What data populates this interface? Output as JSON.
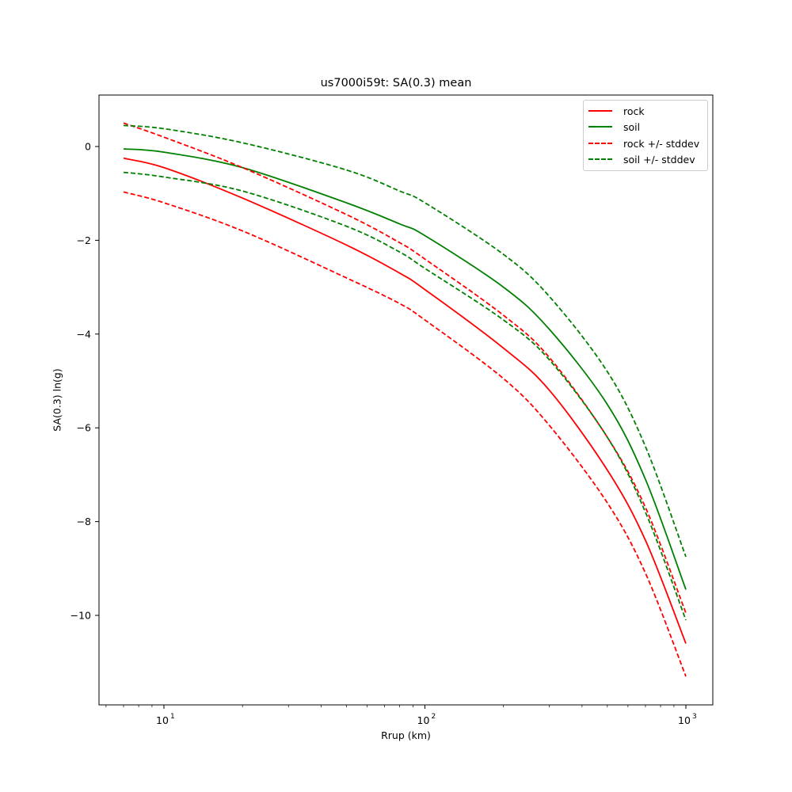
{
  "chart_data": {
    "type": "line",
    "title": "us7000i59t: SA(0.3) mean",
    "xlabel": "Rrup (km)",
    "ylabel": "SA(0.3) ln(g)",
    "xscale": "log",
    "xlim": [
      5.8,
      1300
    ],
    "ylim": [
      -11.9,
      1.1
    ],
    "xticks": [
      {
        "value": 10,
        "label": "10^1"
      },
      {
        "value": 100,
        "label": "10^2"
      },
      {
        "value": 1000,
        "label": "10^3"
      }
    ],
    "yticks": [
      0,
      -2,
      -4,
      -6,
      -8,
      -10
    ],
    "grid": false,
    "legend_position": "upper right",
    "x": [
      7,
      10,
      20,
      50,
      80,
      100,
      200,
      300,
      500,
      700,
      1000
    ],
    "series": [
      {
        "name": "rock",
        "color": "#ff0000",
        "style": "solid",
        "values": [
          -0.25,
          -0.45,
          -1.1,
          -2.1,
          -2.7,
          -3.05,
          -4.3,
          -5.2,
          -6.9,
          -8.4,
          -10.6
        ]
      },
      {
        "name": "soil",
        "color": "#008000",
        "style": "solid",
        "values": [
          -0.05,
          -0.12,
          -0.45,
          -1.2,
          -1.65,
          -1.9,
          -3.0,
          -3.9,
          -5.5,
          -7.1,
          -9.45
        ]
      },
      {
        "name": "rock +/- stddev",
        "color": "#ff0000",
        "style": "dashed",
        "values": [
          0.5,
          0.2,
          -0.45,
          -1.45,
          -2.05,
          -2.4,
          -3.6,
          -4.5,
          -6.2,
          -7.7,
          -9.95
        ]
      },
      {
        "name": "rock +/- stddev (lower)",
        "color": "#ff0000",
        "style": "dashed",
        "legend": false,
        "values": [
          -0.97,
          -1.2,
          -1.8,
          -2.8,
          -3.35,
          -3.7,
          -4.95,
          -5.95,
          -7.6,
          -9.1,
          -11.3
        ]
      },
      {
        "name": "soil +/- stddev",
        "color": "#008000",
        "style": "dashed",
        "values": [
          0.45,
          0.38,
          0.08,
          -0.5,
          -0.95,
          -1.2,
          -2.3,
          -3.2,
          -4.8,
          -6.4,
          -8.75
        ]
      },
      {
        "name": "soil +/- stddev (lower)",
        "color": "#008000",
        "style": "dashed",
        "legend": false,
        "values": [
          -0.55,
          -0.65,
          -0.95,
          -1.7,
          -2.25,
          -2.6,
          -3.7,
          -4.55,
          -6.2,
          -7.8,
          -10.1
        ]
      }
    ],
    "legend": [
      {
        "label": "rock",
        "color": "#ff0000",
        "style": "solid"
      },
      {
        "label": "soil",
        "color": "#008000",
        "style": "solid"
      },
      {
        "label": "rock +/- stddev",
        "color": "#ff0000",
        "style": "dashed"
      },
      {
        "label": "soil +/- stddev",
        "color": "#008000",
        "style": "dashed"
      }
    ]
  }
}
